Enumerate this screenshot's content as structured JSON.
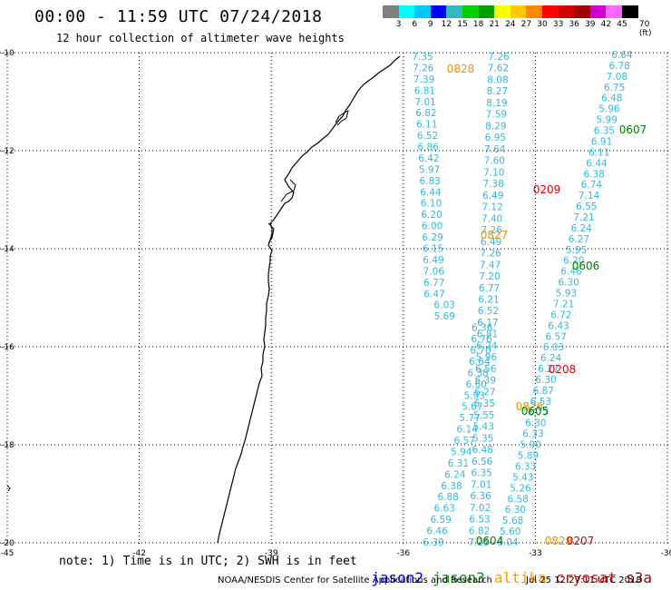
{
  "header": {
    "title": "00:00 - 11:59 UTC 07/24/2018",
    "subtitle": "12 hour collection of altimeter wave heights"
  },
  "color_scale": {
    "colors": [
      "#808080",
      "#00ffff",
      "#00c8ff",
      "#0000ff",
      "#33b8c0",
      "#00d000",
      "#00a000",
      "#ffff00",
      "#ffc800",
      "#ff8800",
      "#ff0000",
      "#d00000",
      "#a00000",
      "#d000d0",
      "#ff66ff",
      "#000000"
    ],
    "labels": [
      "3",
      "6",
      "9",
      "12",
      "15",
      "18",
      "21",
      "24",
      "27",
      "30",
      "33",
      "36",
      "39",
      "42",
      "45",
      "70 (ft)"
    ]
  },
  "axes": {
    "lat_labels": [
      "-10",
      "-12",
      "-14",
      "-16",
      "-18",
      "-20"
    ],
    "lon_labels": [
      "-45",
      "-42",
      "-39",
      "-36",
      "-33",
      "-30"
    ]
  },
  "tracks": [
    {
      "name": "track-0828",
      "color": "#33b8e0",
      "values": [
        "7.35",
        "7.26",
        "7.39",
        "6.81",
        "7.01",
        "6.82",
        "6.11",
        "6.52",
        "6.86",
        "6.42",
        "5.97",
        "6.83",
        "6.44",
        "6.10",
        "6.20",
        "6.00",
        "6.29",
        "6.15",
        "6.49",
        "7.06",
        "6.77",
        "6.47",
        "6.03",
        "5.69",
        "6.36",
        "6.76",
        "6.70",
        "6.64",
        "6.38",
        "6.60",
        "5.93",
        "5.67",
        "5.77",
        "6.14",
        "6.57",
        "5.94",
        "6.31",
        "6.24",
        "6.38",
        "6.88",
        "6.63",
        "6.59",
        "6.46",
        "6.39"
      ]
    },
    {
      "name": "track-0209",
      "color": "#33b8e0",
      "values": [
        "7.26",
        "7.62",
        "8.08",
        "8.27",
        "8.19",
        "7.59",
        "8.29",
        "6.95",
        "7.64",
        "7.60",
        "7.10",
        "7.38",
        "6.49",
        "7.12",
        "7.40",
        "7.26",
        "6.49",
        "7.26",
        "7.47",
        "7.20",
        "6.77",
        "6.21",
        "6.52",
        "6.17",
        "6.81",
        "6.24",
        "5.96",
        "6.56",
        "6.39",
        "6.27",
        "6.35",
        "5.55",
        "5.43",
        "5.35",
        "6.48",
        "6.56",
        "6.35",
        "7.01",
        "6.36",
        "7.02",
        "6.53",
        "6.82",
        "7.25"
      ]
    },
    {
      "name": "track-0607",
      "color": "#33b8e0",
      "values": [
        "6.64",
        "6.78",
        "7.08",
        "6.75",
        "6.48",
        "5.96",
        "5.99",
        "6.35",
        "6.91",
        "6.11",
        "6.44",
        "6.38",
        "6.74",
        "7.14",
        "6.55",
        "7.21",
        "6.24",
        "6.27",
        "5.95",
        "6.20",
        "6.46",
        "6.30",
        "5.93",
        "7.21",
        "6.72",
        "6.43",
        "6.57",
        "6.03",
        "6.24",
        "6.27",
        "6.30",
        "6.87",
        "6.53",
        "6.77",
        "6.30",
        "6.33",
        "5.90",
        "5.89",
        "6.33",
        "5.43",
        "5.26",
        "6.58",
        "6.30",
        "5.68",
        "5.60",
        "6.04"
      ]
    }
  ],
  "pass_labels": [
    {
      "text": "0828",
      "color": "#f09000"
    },
    {
      "text": "0827",
      "color": "#f09000"
    },
    {
      "text": "0826",
      "color": "#f09000"
    },
    {
      "text": "0829",
      "color": "#f09000"
    },
    {
      "text": "0209",
      "color": "#e00000"
    },
    {
      "text": "0208",
      "color": "#e00000"
    },
    {
      "text": "0207",
      "color": "#e00000"
    },
    {
      "text": "0607",
      "color": "#008000"
    },
    {
      "text": "0606",
      "color": "#008000"
    },
    {
      "text": "0605",
      "color": "#008000"
    },
    {
      "text": "0604",
      "color": "#008000"
    }
  ],
  "notes": "note: 1) Time is in UTC; 2) SWH is in feet",
  "legend": [
    {
      "name": "jason2",
      "color": "#0000ff"
    },
    {
      "name": "jason3",
      "color": "#00a000"
    },
    {
      "name": "altika",
      "color": "#ff9900"
    },
    {
      "name": "cryosat",
      "color": "#ff0000"
    },
    {
      "name": "s3a",
      "color": "#a00000"
    }
  ],
  "footer": {
    "credit": "NOAA/NESDIS Center for Satellite Applications and Research",
    "timestamp": "Jul 25 12:27:11 UTC 2018"
  }
}
